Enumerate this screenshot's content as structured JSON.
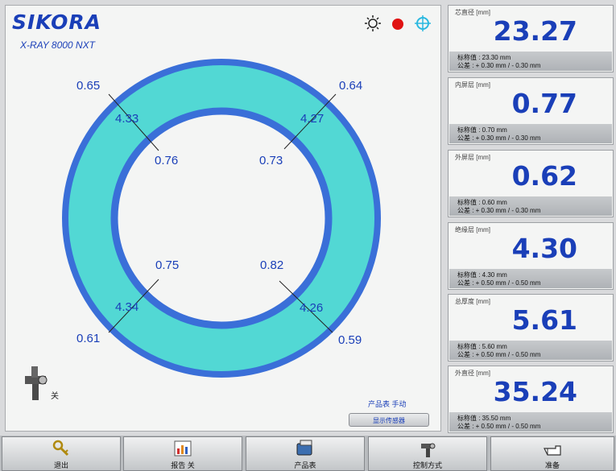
{
  "brand": {
    "logo": "SIKORA",
    "model": "X-RAY 8000 NXT"
  },
  "status": {
    "icons": [
      "sun-icon",
      "red-status-dot",
      "crosshair-icon"
    ],
    "dot_color": "#e01212"
  },
  "cross_section": {
    "fill_color": "#52d8d4",
    "border_color": "#3a6fd8",
    "outer_values": {
      "top_left": "0.65",
      "top_right": "0.64",
      "bottom_left": "0.61",
      "bottom_right": "0.59"
    },
    "wall_values": {
      "top_left": "4.33",
      "top_right": "4.27",
      "bottom_left": "4.34",
      "bottom_right": "4.26"
    },
    "inner_values": {
      "top_left": "0.76",
      "top_right": "0.73",
      "bottom_left": "0.75",
      "bottom_right": "0.82"
    }
  },
  "probe": {
    "label": "关"
  },
  "product": {
    "label": "产品表 手动",
    "button": "显示传感器"
  },
  "measurements": [
    {
      "title": "芯直径 [mm]",
      "value": "23.27",
      "nominal": "标称值 : 23.30 mm",
      "tolerance": "公差 : + 0.30 mm / - 0.30 mm"
    },
    {
      "title": "内屏层 [mm]",
      "value": "0.77",
      "nominal": "标称值 : 0.70 mm",
      "tolerance": "公差 : + 0.30 mm / - 0.30 mm"
    },
    {
      "title": "外屏层 [mm]",
      "value": "0.62",
      "nominal": "标称值 : 0.60 mm",
      "tolerance": "公差 : + 0.30 mm / - 0.30 mm"
    },
    {
      "title": "绝缘层 [mm]",
      "value": "4.30",
      "nominal": "标称值 : 4.30 mm",
      "tolerance": "公差 : + 0.50 mm / - 0.50 mm"
    },
    {
      "title": "总厚度 [mm]",
      "value": "5.61",
      "nominal": "标称值 : 5.60 mm",
      "tolerance": "公差 : + 0.50 mm / - 0.50 mm"
    },
    {
      "title": "外直径 [mm]",
      "value": "35.24",
      "nominal": "标称值 : 35.50 mm",
      "tolerance": "公差 : + 0.50 mm / - 0.50 mm"
    }
  ],
  "bottom_bar": [
    {
      "label": "退出",
      "icon": "key-icon"
    },
    {
      "label": "报告 关",
      "icon": "report-icon"
    },
    {
      "label": "产品表",
      "icon": "product-icon"
    },
    {
      "label": "控制方式",
      "icon": "control-icon"
    },
    {
      "label": "准备",
      "icon": "hand-pointer-icon"
    }
  ]
}
